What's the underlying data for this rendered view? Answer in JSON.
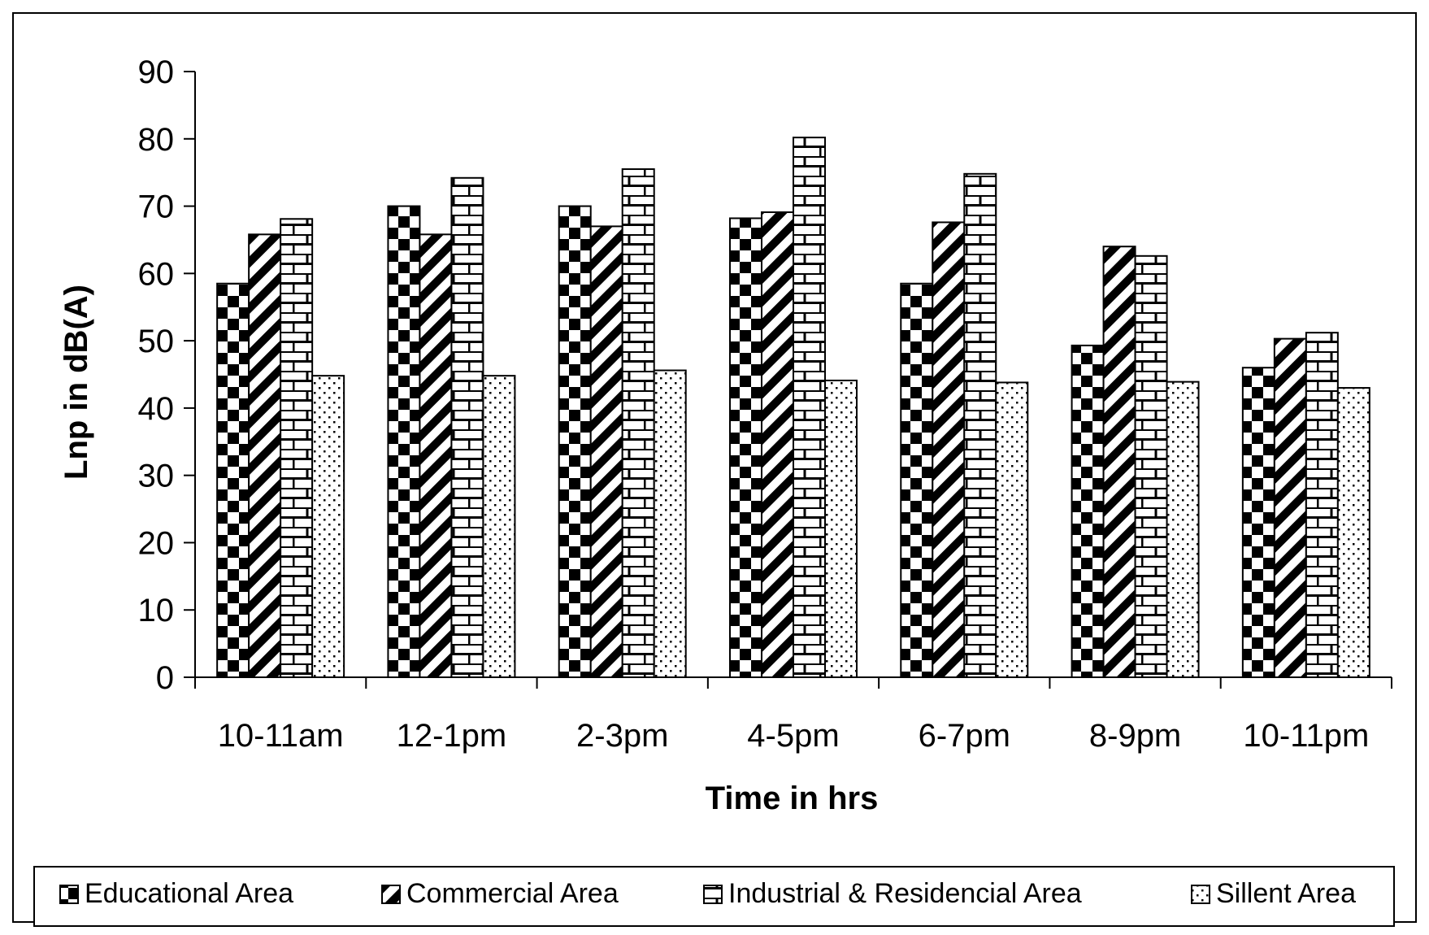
{
  "chart_data": {
    "type": "bar",
    "title": "",
    "xlabel": "Time in hrs",
    "ylabel": "Lnp in dB(A)",
    "ylim": [
      0,
      90
    ],
    "yticks": [
      0,
      10,
      20,
      30,
      40,
      50,
      60,
      70,
      80,
      90
    ],
    "grid": false,
    "legend_position": "bottom",
    "categories": [
      "10-11am",
      "12-1pm",
      "2-3pm",
      "4-5pm",
      "6-7pm",
      "8-9pm",
      "10-11pm"
    ],
    "series": [
      {
        "name": "Educational Area",
        "pattern": "checker",
        "values": [
          58.5,
          70,
          70,
          68.2,
          58.5,
          49.3,
          46
        ]
      },
      {
        "name": "Commercial Area",
        "pattern": "diagonal",
        "values": [
          65.8,
          65.8,
          67,
          69.1,
          67.6,
          64,
          50.3
        ]
      },
      {
        "name": "Industrial & Residencial Area",
        "pattern": "brick",
        "values": [
          68.1,
          74.2,
          75.5,
          80.2,
          74.8,
          62.6,
          51.2
        ]
      },
      {
        "name": "Sillent Area",
        "pattern": "dots",
        "values": [
          44.8,
          44.8,
          45.6,
          44.1,
          43.8,
          43.9,
          43
        ]
      }
    ]
  }
}
